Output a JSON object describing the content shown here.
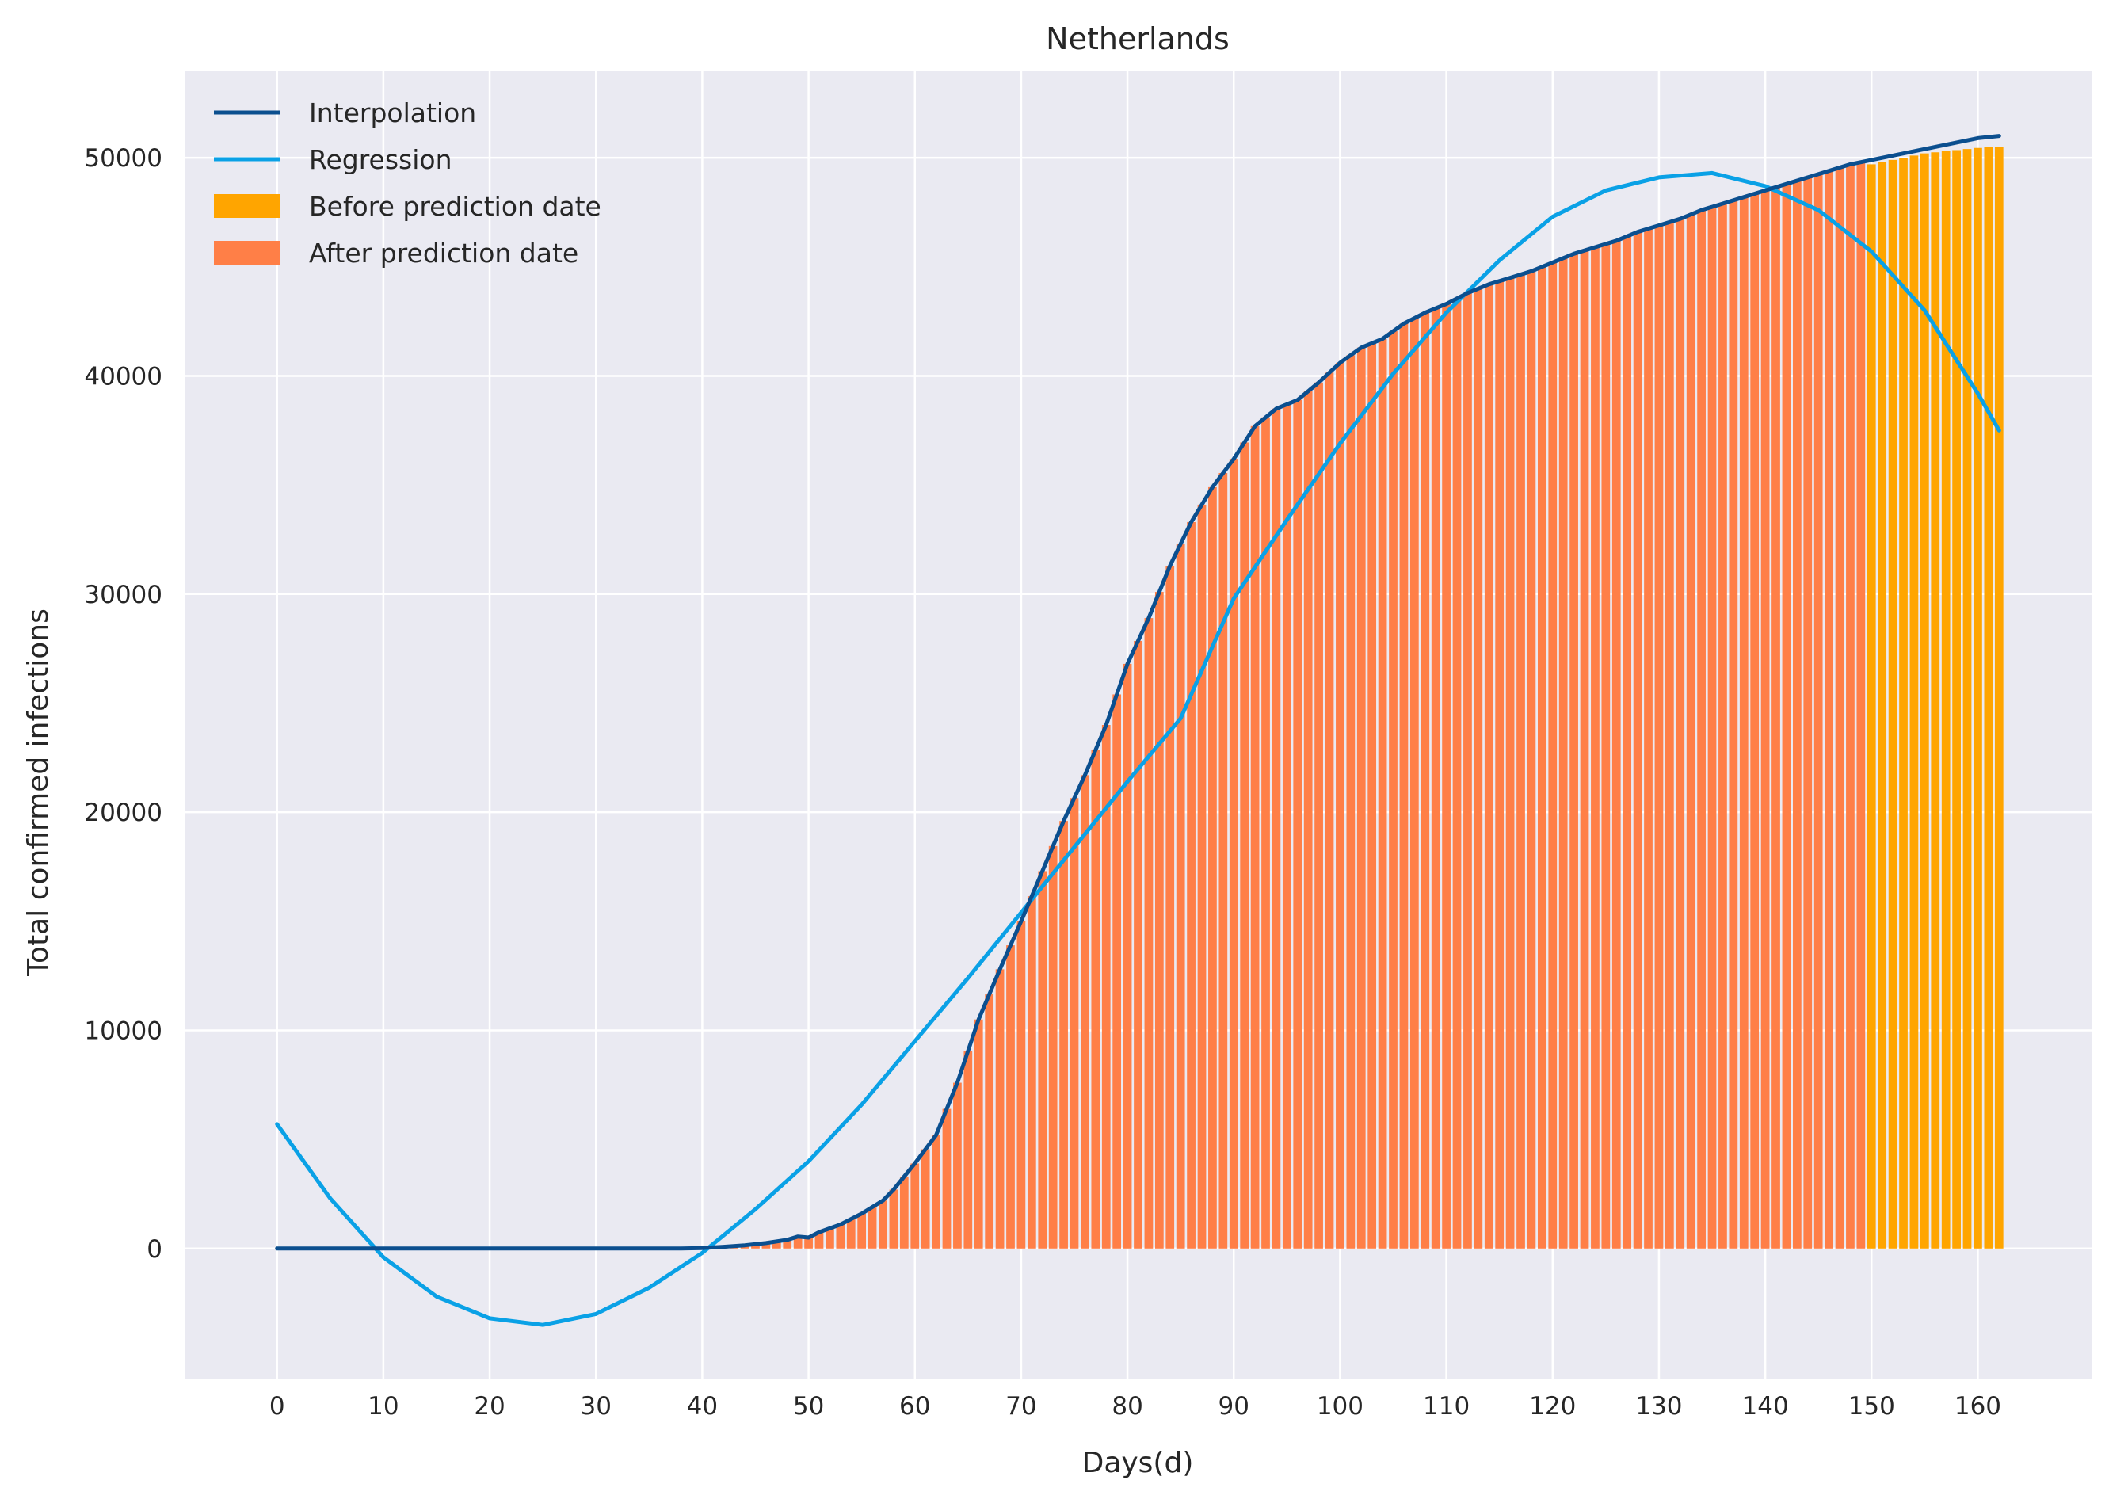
{
  "chart_data": {
    "type": "bar",
    "title": "Netherlands",
    "xlabel": "Days(d)",
    "ylabel": "Total confirmed infections",
    "xlim": [
      -8.7,
      170.7
    ],
    "ylim": [
      -6000,
      54000
    ],
    "xticks": [
      0,
      10,
      20,
      30,
      40,
      50,
      60,
      70,
      80,
      90,
      100,
      110,
      120,
      130,
      140,
      150,
      160
    ],
    "yticks": [
      0,
      10000,
      20000,
      30000,
      40000,
      50000
    ],
    "grid": true,
    "legend_position": "top-left",
    "colors": {
      "background": "#eaeaf2",
      "grid": "#ffffff",
      "interpolation": "#0b4f8f",
      "regression": "#0aa1e6",
      "before_prediction": "#ffa500",
      "after_prediction": "#ff7f47"
    },
    "legend": [
      {
        "label": "Interpolation",
        "kind": "line",
        "series": "interpolation"
      },
      {
        "label": "Regression",
        "kind": "line",
        "series": "regression"
      },
      {
        "label": "Before prediction date",
        "kind": "patch",
        "series": "before_prediction"
      },
      {
        "label": "After prediction date",
        "kind": "patch",
        "series": "after_prediction"
      }
    ],
    "series": [
      {
        "name": "Interpolation",
        "type": "line",
        "x": [
          0,
          10,
          20,
          30,
          35,
          38,
          40,
          42,
          44,
          46,
          48,
          49,
          50,
          51,
          53,
          55,
          57,
          58,
          60,
          62,
          64,
          66,
          68,
          70,
          72,
          74,
          76,
          78,
          80,
          82,
          84,
          86,
          88,
          90,
          92,
          94,
          96,
          98,
          100,
          102,
          104,
          106,
          108,
          110,
          112,
          114,
          116,
          118,
          120,
          122,
          124,
          126,
          128,
          130,
          132,
          134,
          136,
          138,
          140,
          142,
          144,
          146,
          148,
          150,
          152,
          154,
          156,
          158,
          160,
          162
        ],
        "y": [
          0,
          0,
          0,
          0,
          0,
          0,
          20,
          80,
          150,
          250,
          400,
          550,
          500,
          750,
          1100,
          1600,
          2200,
          2700,
          3900,
          5200,
          7600,
          10500,
          12800,
          15000,
          17300,
          19600,
          21700,
          24000,
          26800,
          28900,
          31300,
          33300,
          34900,
          36200,
          37700,
          38500,
          38900,
          39700,
          40600,
          41300,
          41700,
          42400,
          42900,
          43300,
          43800,
          44200,
          44500,
          44800,
          45200,
          45600,
          45900,
          46200,
          46600,
          46900,
          47200,
          47600,
          47900,
          48200,
          48500,
          48800,
          49100,
          49400,
          49700,
          49900,
          50100,
          50300,
          50500,
          50700,
          50900,
          51000
        ]
      },
      {
        "name": "Regression",
        "type": "line",
        "x": [
          0,
          5,
          10,
          15,
          20,
          25,
          30,
          35,
          40,
          45,
          50,
          55,
          60,
          65,
          70,
          75,
          80,
          85,
          90,
          95,
          100,
          105,
          110,
          115,
          120,
          125,
          130,
          135,
          140,
          145,
          150,
          155,
          160,
          162
        ],
        "y": [
          5700,
          2300,
          -400,
          -2200,
          -3200,
          -3500,
          -3000,
          -1800,
          -200,
          1800,
          4000,
          6600,
          9500,
          12400,
          15400,
          18400,
          21400,
          24300,
          29800,
          33400,
          36900,
          40100,
          42900,
          45300,
          47300,
          48500,
          49100,
          49300,
          48700,
          47600,
          45700,
          43000,
          39200,
          37500
        ]
      },
      {
        "name": "After prediction date",
        "type": "bar",
        "range": [
          0,
          149
        ],
        "values_from": "Interpolation"
      },
      {
        "name": "Before prediction date",
        "type": "bar",
        "x": [
          150,
          151,
          152,
          153,
          154,
          155,
          156,
          157,
          158,
          159,
          160,
          161,
          162
        ],
        "values": [
          49700,
          49800,
          49900,
          50000,
          50100,
          50200,
          50250,
          50300,
          50350,
          50400,
          50450,
          50480,
          50500
        ]
      }
    ]
  }
}
